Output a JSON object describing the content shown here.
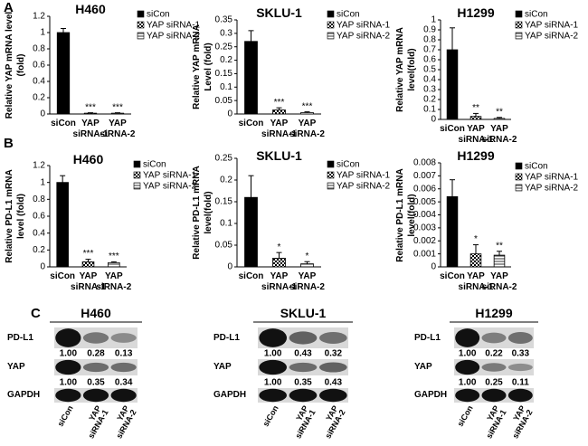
{
  "panel_labels": [
    "A",
    "B",
    "C"
  ],
  "chart_data": [
    {
      "type": "bar",
      "title": "H460",
      "ylabel": "Relative YAP mRNA level (fold)",
      "categories": [
        "siCon",
        "YAP siRNA-1",
        "YAP siRNA-2"
      ],
      "values": [
        1.0,
        0.01,
        0.01
      ],
      "errors": [
        0.05,
        0.005,
        0.005
      ],
      "annotations": [
        null,
        "***",
        "***"
      ],
      "color": "#000000",
      "ylim": [
        0,
        1.2
      ],
      "yticks": [
        0,
        0.2,
        0.4,
        0.6,
        0.8,
        1,
        1.2
      ]
    },
    {
      "type": "bar",
      "title": "SKLU-1",
      "ylabel": "Relative YAP mRNA Level (fold)",
      "categories": [
        "siCon",
        "YAP siRNA-1",
        "YAP siRNA-2"
      ],
      "values": [
        0.27,
        0.015,
        0.005
      ],
      "errors": [
        0.04,
        0.008,
        0.003
      ],
      "annotations": [
        null,
        "***",
        "***"
      ],
      "color": "#000000",
      "ylim": [
        0,
        0.35
      ],
      "yticks": [
        0,
        0.05,
        0.1,
        0.15,
        0.2,
        0.25,
        0.3,
        0.35
      ]
    },
    {
      "type": "bar",
      "title": "H1299",
      "ylabel": "Relative YAP mRNA level(fold)",
      "categories": [
        "siCon",
        "YAP siRNA-1",
        "YAP siRNA-2"
      ],
      "values": [
        0.7,
        0.03,
        0.01
      ],
      "errors": [
        0.22,
        0.03,
        0.01
      ],
      "annotations": [
        null,
        "**",
        "**"
      ],
      "color": "#000000",
      "ylim": [
        0,
        1
      ],
      "yticks": [
        0,
        0.1,
        0.2,
        0.3,
        0.4,
        0.5,
        0.6,
        0.7,
        0.8,
        0.9,
        1
      ]
    },
    {
      "type": "bar",
      "title": "H460",
      "ylabel": "Relative PD-L1 mRNA level (fold)",
      "categories": [
        "siCon",
        "YAP siRNA-1",
        "YAP siRNA-2"
      ],
      "values": [
        1.0,
        0.06,
        0.05
      ],
      "errors": [
        0.08,
        0.03,
        0.01
      ],
      "annotations": [
        null,
        "***",
        "***"
      ],
      "color": "#000000",
      "ylim": [
        0,
        1.2
      ],
      "yticks": [
        0,
        0.2,
        0.4,
        0.6,
        0.8,
        1,
        1.2
      ]
    },
    {
      "type": "bar",
      "title": "SKLU-1",
      "ylabel": "Relative PD-L1 mRNA level(fold)",
      "categories": [
        "siCon",
        "YAP siRNA-1",
        "YAP siRNA-2"
      ],
      "values": [
        0.16,
        0.02,
        0.007
      ],
      "errors": [
        0.05,
        0.013,
        0.005
      ],
      "annotations": [
        null,
        "*",
        "*"
      ],
      "color": "#000000",
      "ylim": [
        0,
        0.25
      ],
      "yticks": [
        0,
        0.05,
        0.1,
        0.15,
        0.2,
        0.25
      ]
    },
    {
      "type": "bar",
      "title": "H1299",
      "ylabel": "Relative PD-L1 mRNA level(fold)",
      "categories": [
        "siCon",
        "YAP siRNA-1",
        "YAP siRNA-2"
      ],
      "values": [
        0.0054,
        0.001,
        0.0009
      ],
      "errors": [
        0.0013,
        0.0007,
        0.0003
      ],
      "annotations": [
        null,
        "*",
        "**"
      ],
      "color": "#000000",
      "ylim": [
        0,
        0.008
      ],
      "yticks": [
        0,
        0.001,
        0.002,
        0.003,
        0.004,
        0.005,
        0.006,
        0.007,
        0.008
      ]
    }
  ],
  "western_blot": {
    "rows": [
      "PD-L1",
      "YAP",
      "GAPDH"
    ],
    "lanes": [
      "siCon",
      "YAP siRNA-1",
      "YAP siRNA-2"
    ],
    "panels": [
      {
        "title": "H460",
        "quant": [
          [
            "1.00",
            "0.28",
            "0.13"
          ],
          [
            "1.00",
            "0.35",
            "0.34"
          ]
        ]
      },
      {
        "title": "SKLU-1",
        "quant": [
          [
            "1.00",
            "0.43",
            "0.32"
          ],
          [
            "1.00",
            "0.35",
            "0.43"
          ]
        ]
      },
      {
        "title": "H1299",
        "quant": [
          [
            "1.00",
            "0.22",
            "0.33"
          ],
          [
            "1.00",
            "0.25",
            "0.11"
          ]
        ]
      }
    ]
  }
}
